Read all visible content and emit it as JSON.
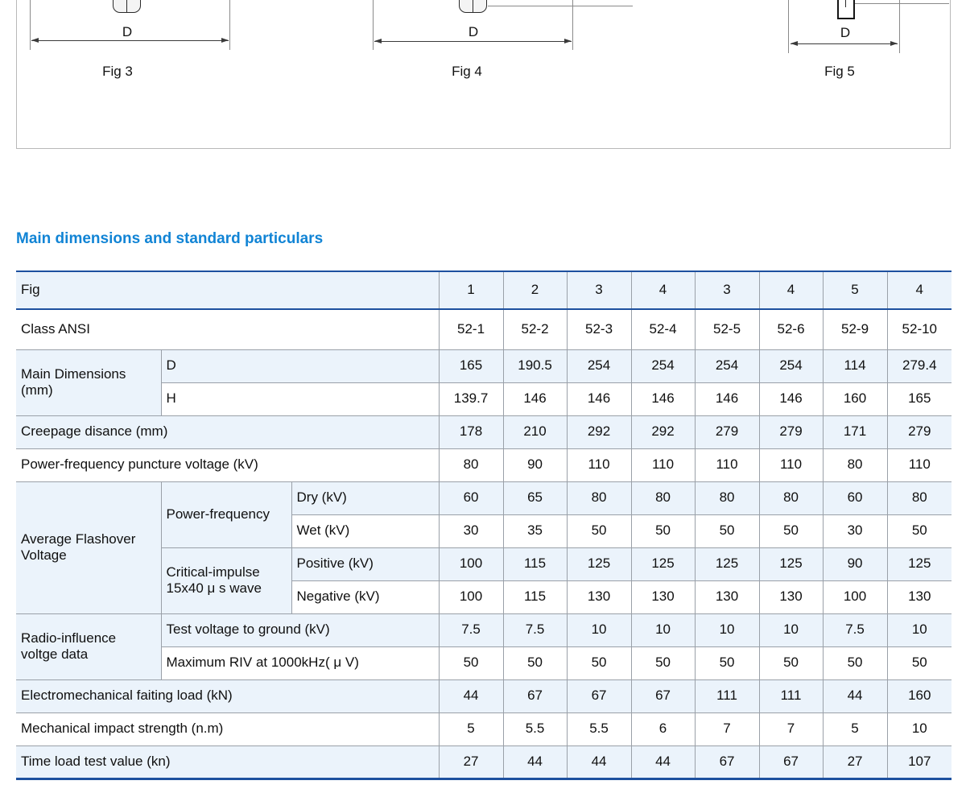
{
  "colors": {
    "heading_blue": "#1184d5",
    "table_accent_blue": "#1d509f",
    "row_tint": "#ebf3fb"
  },
  "figures": {
    "dim_label": "D",
    "items": [
      {
        "caption": "Fig 3"
      },
      {
        "caption": "Fig 4"
      },
      {
        "caption": "Fig 5"
      }
    ]
  },
  "section": {
    "title": "Main dimensions and standard particulars"
  },
  "table": {
    "rows": {
      "fig": {
        "label": "Fig",
        "values": [
          "1",
          "2",
          "3",
          "4",
          "3",
          "4",
          "5",
          "4"
        ]
      },
      "class_ansi": {
        "label": "Class ANSI",
        "values": [
          "52-1",
          "52-2",
          "52-3",
          "52-4",
          "52-5",
          "52-6",
          "52-9",
          "52-10"
        ]
      },
      "main_dimensions": {
        "label": "Main Dimensions (mm)",
        "sub": [
          {
            "label": "D",
            "values": [
              "165",
              "190.5",
              "254",
              "254",
              "254",
              "254",
              "114",
              "279.4"
            ]
          },
          {
            "label": "H",
            "values": [
              "139.7",
              "146",
              "146",
              "146",
              "146",
              "146",
              "160",
              "165"
            ]
          }
        ]
      },
      "creepage": {
        "label": "Creepage disance (mm)",
        "values": [
          "178",
          "210",
          "292",
          "292",
          "279",
          "279",
          "171",
          "279"
        ]
      },
      "puncture": {
        "label": "Power-frequency puncture voltage (kV)",
        "values": [
          "80",
          "90",
          "110",
          "110",
          "110",
          "110",
          "80",
          "110"
        ]
      },
      "flashover": {
        "label": "Average Flashover Voltage",
        "groups": [
          {
            "label": "Power-frequency",
            "sub": [
              {
                "label": "Dry (kV)",
                "values": [
                  "60",
                  "65",
                  "80",
                  "80",
                  "80",
                  "80",
                  "60",
                  "80"
                ]
              },
              {
                "label": "Wet (kV)",
                "values": [
                  "30",
                  "35",
                  "50",
                  "50",
                  "50",
                  "50",
                  "30",
                  "50"
                ]
              }
            ]
          },
          {
            "label": "Critical-impulse 15x40 μ s wave",
            "sub": [
              {
                "label": "Positive (kV)",
                "values": [
                  "100",
                  "115",
                  "125",
                  "125",
                  "125",
                  "125",
                  "90",
                  "125"
                ]
              },
              {
                "label": "Negative (kV)",
                "values": [
                  "100",
                  "115",
                  "130",
                  "130",
                  "130",
                  "130",
                  "100",
                  "130"
                ]
              }
            ]
          }
        ]
      },
      "radio": {
        "label": "Radio-influence voltge data",
        "sub": [
          {
            "label": "Test voltage to ground (kV)",
            "values": [
              "7.5",
              "7.5",
              "10",
              "10",
              "10",
              "10",
              "7.5",
              "10"
            ]
          },
          {
            "label": "Maximum RIV at 1000kHz( μ V)",
            "values": [
              "50",
              "50",
              "50",
              "50",
              "50",
              "50",
              "50",
              "50"
            ]
          }
        ]
      },
      "electromechanical": {
        "label": "Electromechanical faiting load (kN)",
        "values": [
          "44",
          "67",
          "67",
          "67",
          "111",
          "111",
          "44",
          "160"
        ]
      },
      "impact": {
        "label": "Mechanical impact strength (n.m)",
        "values": [
          "5",
          "5.5",
          "5.5",
          "6",
          "7",
          "7",
          "5",
          "10"
        ]
      },
      "time_load": {
        "label": "Time load test value (kn)",
        "values": [
          "27",
          "44",
          "44",
          "44",
          "67",
          "67",
          "27",
          "107"
        ]
      }
    }
  }
}
